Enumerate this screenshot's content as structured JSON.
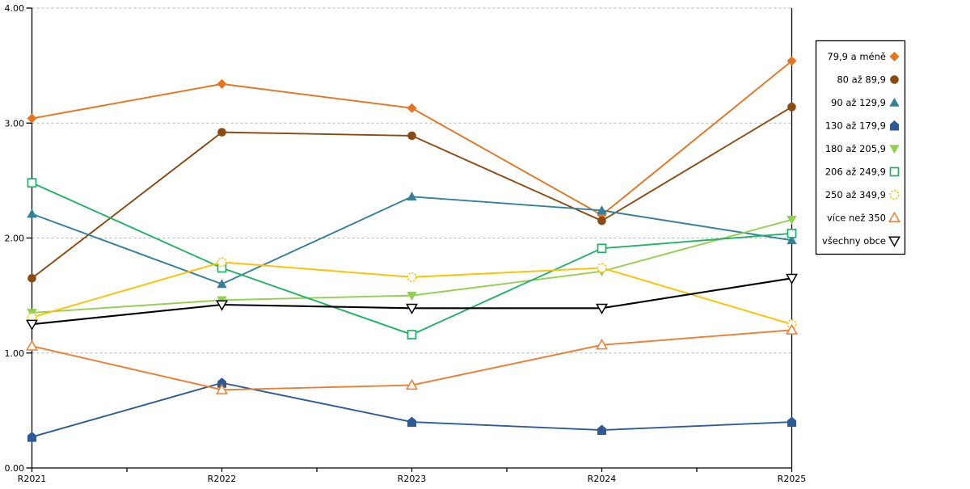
{
  "chart_data": {
    "type": "line",
    "title": "",
    "xlabel": "",
    "ylabel": "",
    "x_categories": [
      "R2021",
      "R2022",
      "R2023",
      "R2024",
      "R2025"
    ],
    "y_ticks": [
      "0.00",
      "1.00",
      "2.00",
      "3.00",
      "4.00"
    ],
    "ylim": [
      0,
      4
    ],
    "grid": "horizontal-dashed",
    "grid_color": "#b2b2b2",
    "axis_color": "#000000",
    "legend_position": "right-outside",
    "series": [
      {
        "name": "79,9 a méně",
        "marker": "diamond-filled",
        "color": "#e8731e",
        "values": [
          3.04,
          3.34,
          3.13,
          2.2,
          3.54
        ]
      },
      {
        "name": "80 až 89,9",
        "marker": "circle-filled",
        "color": "#8c4a10",
        "values": [
          1.65,
          2.92,
          2.89,
          2.15,
          3.14
        ]
      },
      {
        "name": "90 až 129,9",
        "marker": "triangle-up-filled",
        "color": "#35809b",
        "values": [
          2.21,
          1.6,
          2.36,
          2.24,
          1.98
        ]
      },
      {
        "name": "130 až 179,9",
        "marker": "pentagon-filled",
        "color": "#2e5b97",
        "values": [
          0.27,
          0.74,
          0.4,
          0.33,
          0.4
        ]
      },
      {
        "name": "180 až 205,9",
        "marker": "triangle-down-filled",
        "color": "#92d050",
        "values": [
          1.35,
          1.46,
          1.5,
          1.71,
          2.16
        ]
      },
      {
        "name": "206 až 249,9",
        "marker": "square-hollow",
        "color": "#1eb264",
        "values": [
          2.48,
          1.74,
          1.16,
          1.91,
          2.04
        ]
      },
      {
        "name": "250 až 349,9",
        "marker": "circle-hollow-dashed",
        "color": "#ffc000",
        "values": [
          1.31,
          1.79,
          1.66,
          1.74,
          1.25
        ]
      },
      {
        "name": "více než 350",
        "marker": "triangle-up-hollow",
        "color": "#ed7d31",
        "values": [
          1.06,
          0.68,
          0.72,
          1.07,
          1.2
        ]
      },
      {
        "name": "všechny obce",
        "marker": "triangle-down-hollow",
        "color": "#000000",
        "values": [
          1.25,
          1.42,
          1.39,
          1.39,
          1.65
        ]
      }
    ]
  }
}
